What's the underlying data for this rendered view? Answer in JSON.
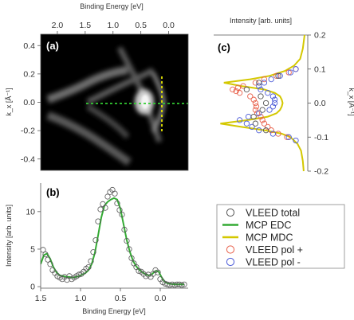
{
  "panel_labels": {
    "a": "(a)",
    "b": "(b)",
    "c": "(c)"
  },
  "colors": {
    "vleed_total": "#555555",
    "mcp_edc": "#33aa33",
    "mcp_mdc": "#d4c800",
    "pol_plus": "#e8604a",
    "pol_minus": "#4a5ad8",
    "dashed_green": "#33cc33",
    "dashed_yellow": "#e6e600"
  },
  "chart_data": [
    {
      "id": "a",
      "type": "heatmap",
      "x_axis_label_top": "Binding Energy [eV]",
      "y_axis_label": "k_x [Å⁻¹]",
      "x_ticks": [
        "2.0",
        "1.5",
        "1.0",
        "0.5",
        "0.0"
      ],
      "y_ticks": [
        "0.4",
        "0.2",
        "0.0",
        "-0.2",
        "-0.4"
      ],
      "xlim": [
        2.3,
        -0.35
      ],
      "ylim": [
        -0.48,
        0.48
      ],
      "cut_lines": [
        {
          "orientation": "horizontal",
          "k": 0.0,
          "color": "#33cc33"
        },
        {
          "orientation": "vertical",
          "E": 0.0,
          "color": "#e6e600"
        }
      ]
    },
    {
      "id": "b",
      "type": "line",
      "x_axis_label": "Binding Energy [eV]",
      "y_axis_label": "Intensity [arb. units]",
      "x_ticks": [
        "1.5",
        "1.0",
        "0.5",
        "0.0"
      ],
      "y_ticks": [
        "0",
        "5",
        "10"
      ],
      "xlim": [
        1.5,
        -0.35
      ],
      "ylim": [
        -0.2,
        13.8
      ],
      "series": [
        {
          "name": "MCP EDC",
          "style": "line",
          "x": [
            1.5,
            1.46,
            1.42,
            1.38,
            1.34,
            1.3,
            1.26,
            1.22,
            1.18,
            1.14,
            1.1,
            1.06,
            1.02,
            0.98,
            0.94,
            0.9,
            0.86,
            0.82,
            0.78,
            0.74,
            0.7,
            0.66,
            0.62,
            0.58,
            0.54,
            0.5,
            0.46,
            0.42,
            0.38,
            0.34,
            0.3,
            0.26,
            0.22,
            0.18,
            0.14,
            0.1,
            0.06,
            0.02,
            -0.02,
            -0.06,
            -0.1,
            -0.14,
            -0.18,
            -0.22,
            -0.26,
            -0.3
          ],
          "y": [
            3.0,
            4.2,
            4.4,
            3.7,
            2.6,
            1.9,
            1.5,
            1.4,
            1.3,
            1.3,
            1.2,
            1.3,
            1.4,
            1.6,
            1.8,
            2.2,
            3.0,
            4.5,
            6.8,
            9.2,
            10.8,
            11.3,
            11.6,
            11.8,
            11.6,
            10.4,
            8.3,
            6.2,
            4.6,
            3.4,
            2.7,
            2.2,
            1.9,
            1.6,
            1.5,
            1.7,
            2.1,
            2.0,
            1.2,
            0.6,
            0.4,
            0.35,
            0.3,
            0.3,
            0.3,
            0.3
          ]
        },
        {
          "name": "VLEED total",
          "style": "markers",
          "x": [
            1.47,
            1.44,
            1.41,
            1.38,
            1.35,
            1.32,
            1.29,
            1.26,
            1.23,
            1.2,
            1.17,
            1.14,
            1.11,
            1.08,
            1.05,
            1.02,
            0.99,
            0.96,
            0.93,
            0.9,
            0.87,
            0.84,
            0.81,
            0.78,
            0.75,
            0.72,
            0.69,
            0.66,
            0.63,
            0.6,
            0.57,
            0.54,
            0.51,
            0.48,
            0.45,
            0.42,
            0.39,
            0.36,
            0.33,
            0.3,
            0.27,
            0.24,
            0.21,
            0.18,
            0.15,
            0.12,
            0.09,
            0.06,
            0.03,
            0.0,
            -0.03,
            -0.06,
            -0.09,
            -0.12,
            -0.15,
            -0.18,
            -0.21,
            -0.24,
            -0.27,
            -0.3
          ],
          "y": [
            4.9,
            4.3,
            3.6,
            3.0,
            2.2,
            1.8,
            1.4,
            1.2,
            1.0,
            1.3,
            0.9,
            1.4,
            1.0,
            1.2,
            1.4,
            1.6,
            1.7,
            2.0,
            2.4,
            2.6,
            3.4,
            4.6,
            6.2,
            8.7,
            10.3,
            11.0,
            10.5,
            12.0,
            12.6,
            12.9,
            12.4,
            11.1,
            10.2,
            9.6,
            7.6,
            6.1,
            5.0,
            3.8,
            3.1,
            2.6,
            2.1,
            2.0,
            1.7,
            1.4,
            1.6,
            1.3,
            1.7,
            2.2,
            1.9,
            1.0,
            0.6,
            0.4,
            0.3,
            0.2,
            0.3,
            0.2,
            0.3,
            0.3,
            0.2,
            0.3
          ]
        }
      ]
    },
    {
      "id": "c",
      "type": "line",
      "x_axis_label_top": "Intensity [arb. units]",
      "y_axis_label": "k_x [Å⁻¹]",
      "y_ticks": [
        "0.2",
        "0.1",
        "0.0",
        "-0.1",
        "-0.2"
      ],
      "ylim": [
        -0.2,
        0.2
      ],
      "series": [
        {
          "name": "MCP MDC",
          "style": "line",
          "k": [
            0.2,
            0.16,
            0.13,
            0.11,
            0.095,
            0.08,
            0.07,
            0.06,
            0.05,
            0.04,
            0.03,
            0.02,
            0.01,
            0.0,
            -0.01,
            -0.02,
            -0.03,
            -0.04,
            -0.05,
            -0.06,
            -0.07,
            -0.08,
            -0.09,
            -0.1,
            -0.12,
            -0.14,
            -0.17,
            -0.2
          ],
          "intensity": [
            0.0,
            0.02,
            0.05,
            0.12,
            0.22,
            0.4,
            0.62,
            0.92,
            0.72,
            0.46,
            0.34,
            0.28,
            0.26,
            0.25,
            0.26,
            0.28,
            0.32,
            0.42,
            0.65,
            0.96,
            0.72,
            0.45,
            0.26,
            0.16,
            0.08,
            0.04,
            0.02,
            0.01
          ]
        },
        {
          "name": "VLEED pol +",
          "style": "markers",
          "k": [
            0.1,
            0.09,
            0.08,
            0.07,
            0.06,
            0.05,
            0.045,
            0.04,
            0.035,
            0.03,
            0.02,
            0.01,
            0.0,
            -0.01,
            -0.02,
            -0.03,
            -0.04,
            -0.05,
            -0.06,
            -0.07,
            -0.08,
            -0.09,
            -0.1
          ],
          "intensity": [
            0.1,
            0.18,
            0.32,
            0.46,
            0.56,
            0.7,
            0.76,
            0.82,
            0.78,
            0.74,
            0.62,
            0.58,
            0.56,
            0.55,
            0.56,
            0.54,
            0.5,
            0.48,
            0.46,
            0.42,
            0.38,
            0.3,
            0.2
          ]
        },
        {
          "name": "VLEED pol -",
          "style": "markers",
          "k": [
            0.1,
            0.09,
            0.08,
            0.07,
            0.06,
            0.05,
            0.04,
            0.03,
            0.02,
            0.01,
            0.0,
            -0.01,
            -0.02,
            -0.03,
            -0.04,
            -0.05,
            -0.06,
            -0.07,
            -0.08,
            -0.09,
            -0.1,
            -0.11
          ],
          "intensity": [
            0.1,
            0.16,
            0.28,
            0.38,
            0.46,
            0.52,
            0.5,
            0.42,
            0.36,
            0.34,
            0.34,
            0.36,
            0.4,
            0.52,
            0.64,
            0.74,
            0.66,
            0.6,
            0.52,
            0.36,
            0.18,
            0.1
          ]
        },
        {
          "name": "VLEED total",
          "style": "markers",
          "k": [
            0.08,
            0.06,
            0.04,
            0.02,
            0.0,
            -0.02,
            -0.04,
            -0.06,
            -0.08
          ],
          "intensity": [
            0.3,
            0.52,
            0.66,
            0.5,
            0.44,
            0.48,
            0.58,
            0.56,
            0.44
          ]
        }
      ]
    }
  ],
  "legend": [
    {
      "label": "VLEED total",
      "kind": "marker",
      "color": "#555555"
    },
    {
      "label": "MCP EDC",
      "kind": "line",
      "color": "#33aa33"
    },
    {
      "label": "MCP MDC",
      "kind": "line",
      "color": "#d4c800"
    },
    {
      "label": "VLEED pol +",
      "kind": "marker",
      "color": "#e8604a"
    },
    {
      "label": "VLEED pol -",
      "kind": "marker",
      "color": "#4a5ad8"
    }
  ]
}
